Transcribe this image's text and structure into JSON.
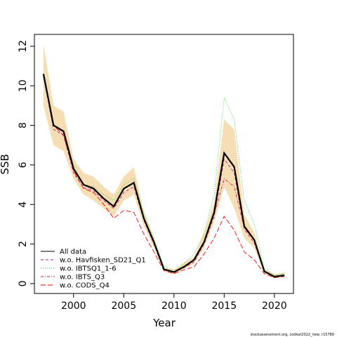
{
  "chart_data": {
    "type": "line",
    "xlabel": "Year",
    "ylabel": "SSB",
    "xlim": [
      1996.1,
      2021.9
    ],
    "ylim": [
      -0.5,
      12.6
    ],
    "xticks": [
      2000,
      2005,
      2010,
      2015,
      2020
    ],
    "yticks": [
      0,
      2,
      4,
      6,
      8,
      10,
      12
    ],
    "grid": false,
    "legend_position": "bottom-left",
    "footnote": "stockassessment.org, codkat2022_new, r15789",
    "band": {
      "x": [
        1997,
        1998,
        1999,
        2000,
        2001,
        2002,
        2003,
        2004,
        2005,
        2006,
        2007,
        2008,
        2009,
        2010,
        2011,
        2012,
        2013,
        2014,
        2015,
        2016,
        2017,
        2018,
        2019,
        2020,
        2021
      ],
      "lower": [
        9.0,
        7.0,
        6.7,
        5.3,
        4.5,
        4.2,
        3.8,
        3.4,
        4.2,
        4.5,
        2.9,
        1.8,
        0.65,
        0.48,
        0.75,
        1.0,
        1.8,
        3.1,
        4.9,
        3.8,
        2.3,
        1.8,
        0.5,
        0.28,
        0.35
      ],
      "upper": [
        12.1,
        9.0,
        8.7,
        6.3,
        5.6,
        5.4,
        4.9,
        4.5,
        5.4,
        5.9,
        3.6,
        2.3,
        0.82,
        0.72,
        1.05,
        1.35,
        2.6,
        4.1,
        8.3,
        7.8,
        3.5,
        2.6,
        0.72,
        0.48,
        0.55
      ],
      "color": "#f5deb3"
    },
    "series": [
      {
        "name": "All data",
        "color": "#000000",
        "style": "solid",
        "values": [
          10.6,
          8.0,
          7.7,
          5.8,
          5.0,
          4.8,
          4.3,
          3.9,
          4.8,
          5.1,
          3.3,
          2.1,
          0.72,
          0.58,
          0.85,
          1.2,
          2.1,
          3.6,
          6.6,
          5.9,
          2.9,
          2.2,
          0.62,
          0.35,
          0.42
        ]
      },
      {
        "name": "w.o. Havfisken_SD21_Q1",
        "color": "#c71585",
        "style": "dashed",
        "values": [
          10.5,
          7.8,
          7.5,
          5.6,
          4.85,
          4.7,
          4.2,
          3.8,
          4.6,
          4.9,
          3.2,
          2.0,
          0.7,
          0.55,
          0.8,
          1.1,
          2.0,
          3.4,
          6.3,
          5.6,
          2.75,
          2.05,
          0.6,
          0.33,
          0.4
        ]
      },
      {
        "name": "w.o. IBTSQ1_1-6",
        "color": "#32cd32",
        "style": "dotted",
        "values": [
          10.4,
          8.1,
          7.7,
          6.0,
          5.0,
          4.9,
          4.5,
          4.2,
          5.0,
          5.3,
          3.6,
          2.3,
          0.9,
          0.6,
          1.0,
          1.5,
          2.5,
          4.5,
          9.4,
          8.3,
          4.2,
          3.0,
          0.75,
          0.4,
          0.55
        ]
      },
      {
        "name": "w.o. IBTS_Q3",
        "color": "#dc143c",
        "style": "dashdot",
        "values": [
          10.5,
          8.0,
          7.7,
          5.8,
          5.0,
          4.85,
          4.3,
          3.9,
          4.8,
          5.1,
          3.3,
          2.1,
          0.72,
          0.58,
          0.85,
          1.2,
          2.1,
          3.5,
          5.3,
          4.9,
          2.8,
          2.2,
          0.6,
          0.35,
          0.42
        ]
      },
      {
        "name": "w.o. CODS_Q4",
        "color": "#ff0000",
        "style": "longdash",
        "values": [
          10.6,
          8.0,
          7.5,
          5.7,
          4.8,
          4.6,
          4.0,
          3.3,
          3.7,
          3.6,
          2.5,
          1.6,
          0.65,
          0.5,
          0.7,
          0.85,
          1.5,
          2.3,
          3.4,
          2.7,
          1.6,
          1.2,
          0.5,
          0.3,
          0.36
        ]
      }
    ]
  }
}
